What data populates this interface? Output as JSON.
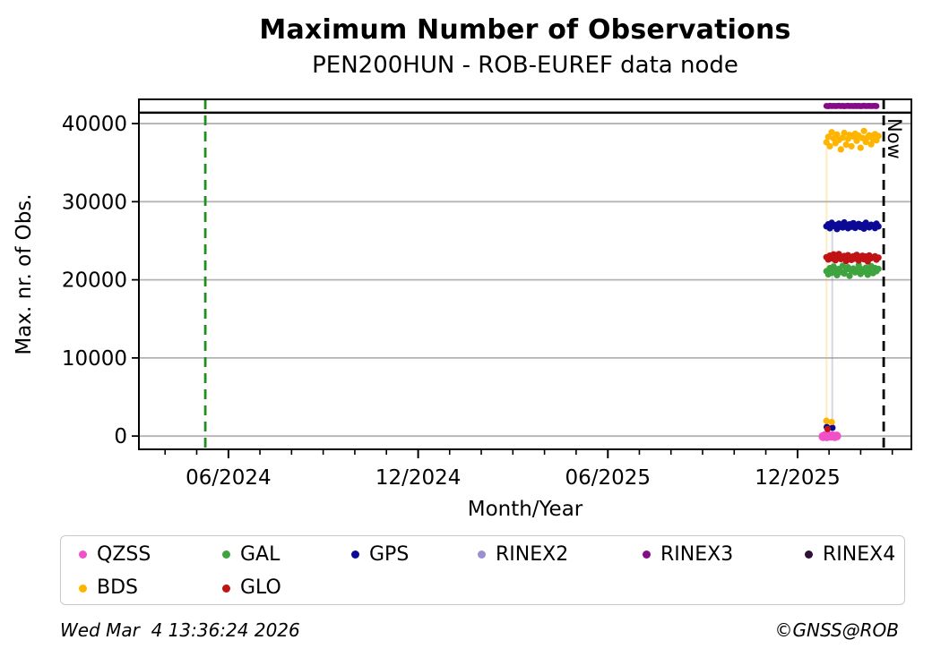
{
  "chart_data": {
    "type": "scatter",
    "title": "Maximum Number of Observations",
    "subtitle": "PEN200HUN - ROB-EUREF data node",
    "xlabel": "Month/Year",
    "ylabel": "Max. nr. of Obs.",
    "xlim": [
      2024.181,
      2026.217
    ],
    "ylim": [
      -1700,
      43100
    ],
    "grid": true,
    "legend_position": "bottom",
    "y_ticks": [
      {
        "label": "0",
        "value": 0
      },
      {
        "label": "10000",
        "value": 10000
      },
      {
        "label": "20000",
        "value": 20000
      },
      {
        "label": "30000",
        "value": 30000
      },
      {
        "label": "40000",
        "value": 40000
      }
    ],
    "x_ticks": [
      {
        "label": "06/2024",
        "value": 2024.417
      },
      {
        "label": "12/2024",
        "value": 2024.917
      },
      {
        "label": "06/2025",
        "value": 2025.417
      },
      {
        "label": "12/2025",
        "value": 2025.917
      }
    ],
    "threshold_line": {
      "value": 41400,
      "color": "#000000"
    },
    "vlines": [
      {
        "name": "station-start-line",
        "x": 2024.356,
        "color": "#1f8f1f",
        "dash": "11 7",
        "label": ""
      },
      {
        "name": "now-line",
        "x": 2026.144,
        "color": "#000000",
        "dash": "11 7",
        "label": "Now"
      }
    ],
    "riser_lines": [
      {
        "x": 2025.9935,
        "y1": 1950,
        "y2": 36900,
        "color": "rgba(255,180,0,0.25)"
      },
      {
        "x": 2026.0085,
        "y1": 1060,
        "y2": 26500,
        "color": "rgba(110,110,140,0.28)"
      }
    ],
    "series": [
      {
        "name": "QZSS",
        "color": "#f050c8",
        "marker_radius": 5,
        "points": [
          [
            2025.984,
            -60
          ],
          [
            2025.989,
            40
          ],
          [
            2025.994,
            -90
          ],
          [
            2025.999,
            70
          ],
          [
            2026.004,
            -30
          ],
          [
            2026.009,
            30
          ],
          [
            2026.015,
            -70
          ],
          [
            2026.02,
            10
          ]
        ]
      },
      {
        "name": "GAL",
        "color": "#3fa33f",
        "marker_radius": 3.6,
        "points": [
          [
            2025.993,
            21100
          ],
          [
            2025.998,
            20700
          ],
          [
            2026.002,
            21500
          ],
          [
            2026.007,
            20900
          ],
          [
            2026.012,
            21700
          ],
          [
            2026.017,
            21200
          ],
          [
            2026.021,
            20600
          ],
          [
            2026.026,
            21400
          ],
          [
            2026.031,
            21000
          ],
          [
            2026.036,
            21800
          ],
          [
            2026.04,
            20800
          ],
          [
            2026.045,
            21300
          ],
          [
            2026.05,
            21600
          ],
          [
            2026.054,
            20500
          ],
          [
            2026.059,
            21150
          ],
          [
            2026.064,
            21450
          ],
          [
            2026.069,
            20950
          ],
          [
            2026.073,
            21250
          ],
          [
            2026.078,
            21900
          ],
          [
            2026.083,
            20750
          ],
          [
            2026.088,
            21350
          ],
          [
            2026.092,
            21050
          ],
          [
            2026.097,
            21550
          ],
          [
            2026.102,
            20650
          ],
          [
            2026.106,
            21200
          ],
          [
            2026.111,
            21750
          ],
          [
            2026.116,
            20850
          ],
          [
            2026.121,
            21500
          ],
          [
            2026.125,
            21100
          ],
          [
            2026.13,
            21400
          ]
        ]
      },
      {
        "name": "GPS",
        "color": "#0a0a96",
        "marker_radius": 3.6,
        "points": [
          [
            2025.994,
            1150
          ],
          [
            2026.009,
            1060
          ],
          [
            2025.993,
            26850
          ],
          [
            2025.998,
            27100
          ],
          [
            2026.002,
            26600
          ],
          [
            2026.007,
            27300
          ],
          [
            2026.012,
            26900
          ],
          [
            2026.017,
            27000
          ],
          [
            2026.021,
            26500
          ],
          [
            2026.026,
            27200
          ],
          [
            2026.031,
            26800
          ],
          [
            2026.036,
            26700
          ],
          [
            2026.04,
            27350
          ],
          [
            2026.045,
            26950
          ],
          [
            2026.05,
            26600
          ],
          [
            2026.054,
            27100
          ],
          [
            2026.059,
            26800
          ],
          [
            2026.064,
            27250
          ],
          [
            2026.069,
            26650
          ],
          [
            2026.073,
            26900
          ],
          [
            2026.078,
            27150
          ],
          [
            2026.083,
            26750
          ],
          [
            2026.088,
            27000
          ],
          [
            2026.092,
            26550
          ],
          [
            2026.097,
            27300
          ],
          [
            2026.102,
            26880
          ],
          [
            2026.106,
            26720
          ],
          [
            2026.111,
            27050
          ],
          [
            2026.116,
            26960
          ],
          [
            2026.121,
            26620
          ],
          [
            2026.125,
            27180
          ],
          [
            2026.13,
            26840
          ]
        ]
      },
      {
        "name": "RINEX2",
        "color": "#9a8fd0",
        "marker_radius": 3.6,
        "points": []
      },
      {
        "name": "RINEX3",
        "color": "#870b87",
        "marker_radius": 3.4,
        "points": [
          [
            2025.993,
            42250
          ],
          [
            2025.998,
            42230
          ],
          [
            2026.002,
            42270
          ],
          [
            2026.007,
            42245
          ],
          [
            2026.012,
            42260
          ],
          [
            2026.017,
            42235
          ],
          [
            2026.021,
            42255
          ],
          [
            2026.026,
            42270
          ],
          [
            2026.031,
            42240
          ],
          [
            2026.036,
            42260
          ],
          [
            2026.04,
            42230
          ],
          [
            2026.045,
            42250
          ],
          [
            2026.05,
            42270
          ],
          [
            2026.054,
            42240
          ],
          [
            2026.059,
            42255
          ],
          [
            2026.064,
            42235
          ],
          [
            2026.069,
            42265
          ],
          [
            2026.073,
            42245
          ],
          [
            2026.078,
            42260
          ],
          [
            2026.083,
            42230
          ],
          [
            2026.088,
            42250
          ],
          [
            2026.092,
            42270
          ],
          [
            2026.097,
            42240
          ],
          [
            2026.102,
            42255
          ],
          [
            2026.106,
            42265
          ],
          [
            2026.111,
            42235
          ],
          [
            2026.116,
            42250
          ],
          [
            2026.121,
            42260
          ],
          [
            2026.125,
            42245
          ]
        ]
      },
      {
        "name": "RINEX4",
        "color": "#2e1035",
        "marker_radius": 3.6,
        "points": []
      },
      {
        "name": "BDS",
        "color": "#ffb400",
        "marker_radius": 3.6,
        "points": [
          [
            2025.993,
            1950
          ],
          [
            2026.007,
            1800
          ],
          [
            2025.993,
            37600
          ],
          [
            2025.998,
            38300
          ],
          [
            2026.002,
            37100
          ],
          [
            2026.007,
            38900
          ],
          [
            2026.012,
            38100
          ],
          [
            2026.017,
            37500
          ],
          [
            2026.021,
            38600
          ],
          [
            2026.026,
            37900
          ],
          [
            2026.031,
            36700
          ],
          [
            2026.036,
            38200
          ],
          [
            2026.04,
            38800
          ],
          [
            2026.045,
            37300
          ],
          [
            2026.05,
            38050
          ],
          [
            2026.054,
            38550
          ],
          [
            2026.059,
            37100
          ],
          [
            2026.064,
            38350
          ],
          [
            2026.069,
            38700
          ],
          [
            2026.073,
            37800
          ],
          [
            2026.078,
            38450
          ],
          [
            2026.083,
            36900
          ],
          [
            2026.088,
            38150
          ],
          [
            2026.092,
            39050
          ],
          [
            2026.097,
            37650
          ],
          [
            2026.102,
            38250
          ],
          [
            2026.106,
            38500
          ],
          [
            2026.111,
            37350
          ],
          [
            2026.116,
            38000
          ],
          [
            2026.121,
            38650
          ],
          [
            2026.125,
            37850
          ],
          [
            2026.13,
            38400
          ]
        ]
      },
      {
        "name": "GLO",
        "color": "#c01313",
        "marker_radius": 3.6,
        "points": [
          [
            2025.996,
            900
          ],
          [
            2025.993,
            22900
          ],
          [
            2025.998,
            22600
          ],
          [
            2026.002,
            23100
          ],
          [
            2026.007,
            22750
          ],
          [
            2026.012,
            23250
          ],
          [
            2026.017,
            22500
          ],
          [
            2026.021,
            22950
          ],
          [
            2026.026,
            23300
          ],
          [
            2026.031,
            22650
          ],
          [
            2026.036,
            22850
          ],
          [
            2026.04,
            23050
          ],
          [
            2026.045,
            22400
          ],
          [
            2026.05,
            23150
          ],
          [
            2026.054,
            22800
          ],
          [
            2026.059,
            22550
          ],
          [
            2026.064,
            23000
          ],
          [
            2026.069,
            22700
          ],
          [
            2026.073,
            23200
          ],
          [
            2026.078,
            22480
          ],
          [
            2026.083,
            22920
          ],
          [
            2026.088,
            23080
          ],
          [
            2026.092,
            22620
          ],
          [
            2026.097,
            22980
          ],
          [
            2026.102,
            22350
          ],
          [
            2026.106,
            23120
          ],
          [
            2026.111,
            22760
          ],
          [
            2026.116,
            22880
          ],
          [
            2026.121,
            23020
          ],
          [
            2026.125,
            22580
          ],
          [
            2026.13,
            22840
          ]
        ]
      }
    ]
  },
  "legend": {
    "items": [
      {
        "label": "QZSS",
        "color": "#f050c8"
      },
      {
        "label": "GAL",
        "color": "#3fa33f"
      },
      {
        "label": "GPS",
        "color": "#0a0a96"
      },
      {
        "label": "RINEX2",
        "color": "#9a8fd0"
      },
      {
        "label": "RINEX3",
        "color": "#870b87"
      },
      {
        "label": "RINEX4",
        "color": "#2e1035"
      },
      {
        "label": "BDS",
        "color": "#ffb400"
      },
      {
        "label": "GLO",
        "color": "#c01313"
      }
    ]
  },
  "footer": {
    "timestamp": "Wed Mar  4 13:36:24 2026",
    "credit": "©GNSS@ROB"
  },
  "style": {
    "grid_color": "#b3b3b3",
    "frame_color": "#000000"
  }
}
